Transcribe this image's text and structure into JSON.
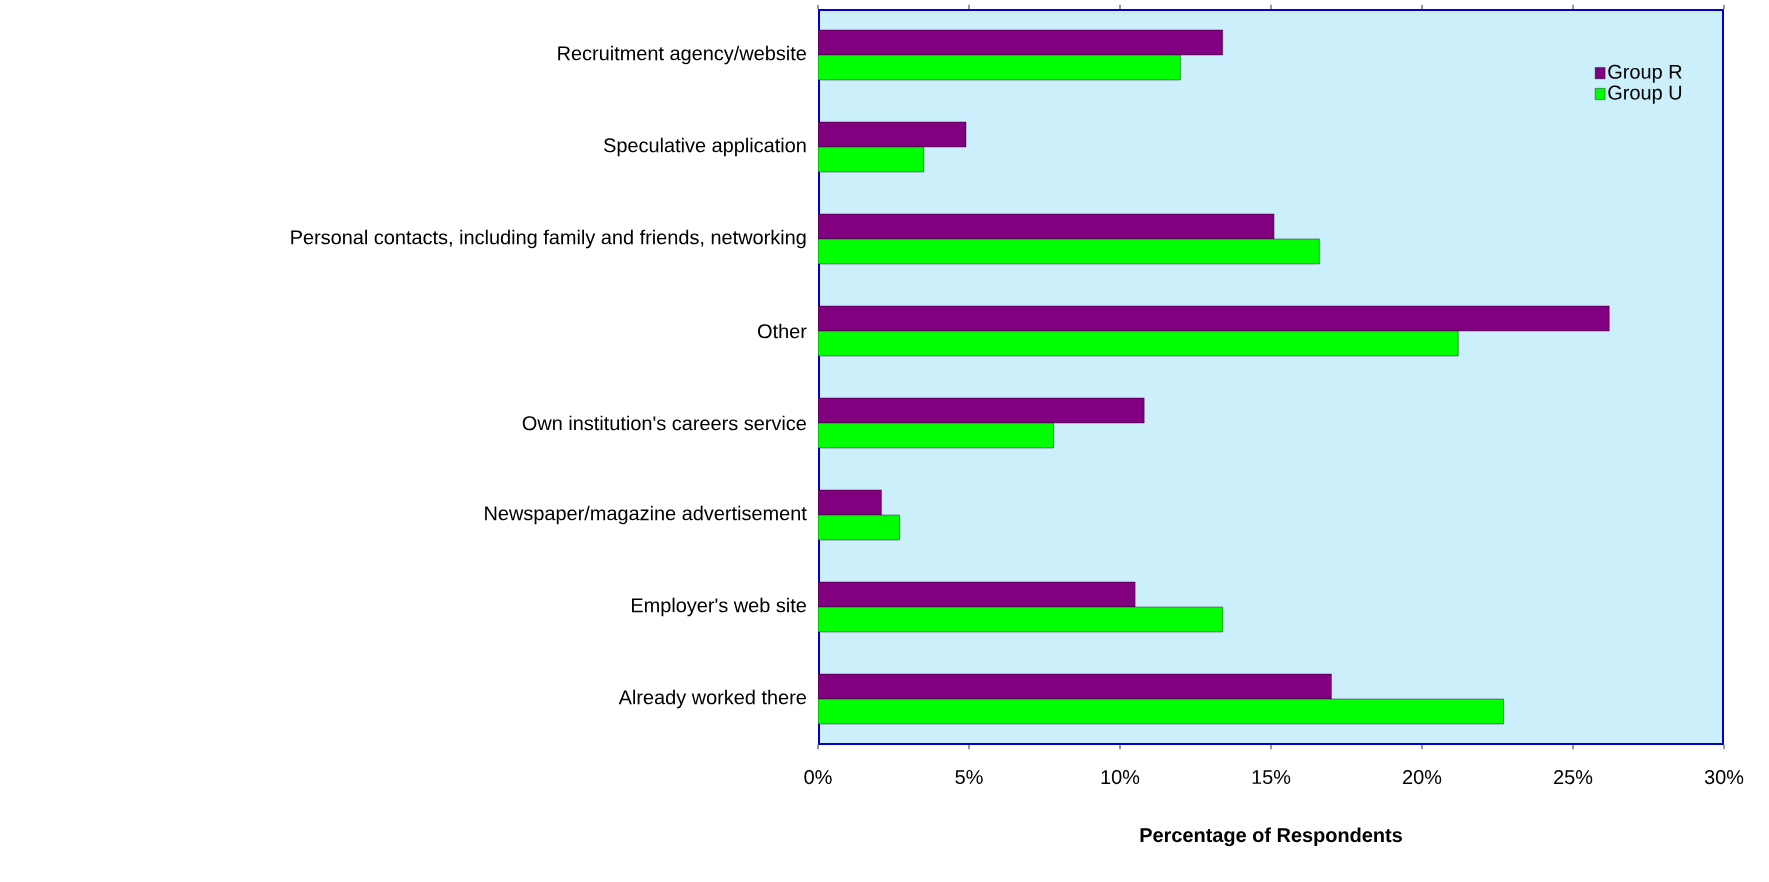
{
  "chart_data": {
    "type": "bar",
    "orientation": "horizontal",
    "xlabel": "Percentage of Respondents",
    "categories": [
      "Recruitment agency/website",
      "Speculative application",
      "Personal contacts, including family and friends, networking",
      "Other",
      "Own institution's careers service",
      "Newspaper/magazine advertisement",
      "Employer's web site",
      "Already worked there"
    ],
    "series": [
      {
        "name": "Group R",
        "color": "#800080",
        "values": [
          13.4,
          4.9,
          15.1,
          26.2,
          10.8,
          2.1,
          10.5,
          17.0
        ]
      },
      {
        "name": "Group U",
        "color": "#00ff00",
        "values": [
          12.0,
          3.5,
          16.6,
          21.2,
          7.8,
          2.7,
          13.4,
          22.7
        ]
      }
    ],
    "xlim": [
      0,
      30
    ],
    "xticks": [
      {
        "value": 0,
        "label": "0%"
      },
      {
        "value": 5,
        "label": "5%"
      },
      {
        "value": 10,
        "label": "10%"
      },
      {
        "value": 15,
        "label": "15%"
      },
      {
        "value": 20,
        "label": "20%"
      },
      {
        "value": 25,
        "label": "25%"
      },
      {
        "value": 30,
        "label": "30%"
      }
    ],
    "legend": "top right",
    "grid": false
  }
}
